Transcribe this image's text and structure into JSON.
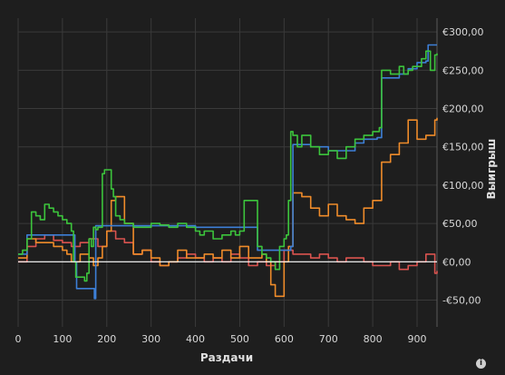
{
  "chart_data": {
    "type": "line",
    "xlabel": "Раздачи",
    "ylabel": "Выигрыш",
    "x_ticks": [
      0,
      100,
      200,
      300,
      400,
      500,
      600,
      700,
      800,
      900
    ],
    "y_ticks": [
      -50,
      0,
      50,
      100,
      150,
      200,
      250,
      300
    ],
    "y_tick_labels": [
      "-€50,00",
      "€0,00",
      "€50,00",
      "€100,00",
      "€150,00",
      "€200,00",
      "€250,00",
      "€300,00"
    ],
    "xlim": [
      0,
      945
    ],
    "ylim": [
      -85,
      318
    ],
    "grid": true,
    "y_axis_position": "right",
    "colors": {
      "background": "#1e1e1e",
      "grid": "#3a3a3a",
      "zero_line": "#ffffff",
      "text": "#d8d8d8"
    },
    "series": [
      {
        "color": "#3d7fd6",
        "x": [
          0,
          18,
          20,
          60,
          120,
          128,
          132,
          168,
          172,
          175,
          185,
          220,
          280,
          300,
          340,
          380,
          400,
          460,
          480,
          540,
          560,
          600,
          615,
          620,
          660,
          700,
          760,
          780,
          800,
          810,
          820,
          840,
          860,
          880,
          900,
          920,
          925,
          945
        ],
        "y": [
          10,
          10,
          35,
          35,
          35,
          0,
          -35,
          -35,
          -48,
          47,
          47,
          47,
          47,
          47,
          47,
          47,
          45,
          45,
          45,
          15,
          15,
          15,
          20,
          153,
          150,
          145,
          155,
          160,
          160,
          162,
          240,
          240,
          245,
          252,
          260,
          262,
          283,
          283
        ]
      },
      {
        "color": "#3cc43c",
        "x": [
          0,
          10,
          20,
          30,
          40,
          50,
          60,
          70,
          80,
          90,
          100,
          110,
          120,
          125,
          130,
          140,
          150,
          155,
          160,
          165,
          170,
          175,
          180,
          190,
          195,
          200,
          210,
          215,
          220,
          230,
          240,
          260,
          280,
          300,
          320,
          340,
          360,
          380,
          400,
          410,
          420,
          440,
          460,
          480,
          490,
          500,
          510,
          520,
          530,
          540,
          545,
          550,
          560,
          570,
          580,
          590,
          600,
          605,
          610,
          615,
          620,
          630,
          640,
          660,
          680,
          700,
          720,
          740,
          760,
          780,
          800,
          810,
          815,
          820,
          840,
          860,
          870,
          880,
          890,
          900,
          910,
          920,
          930,
          940,
          945
        ],
        "y": [
          10,
          15,
          30,
          65,
          60,
          55,
          75,
          70,
          65,
          60,
          55,
          50,
          40,
          0,
          -20,
          -20,
          -25,
          -15,
          30,
          20,
          45,
          42,
          45,
          115,
          120,
          120,
          95,
          85,
          60,
          55,
          50,
          45,
          45,
          50,
          48,
          45,
          50,
          45,
          40,
          35,
          40,
          30,
          35,
          40,
          35,
          40,
          80,
          80,
          80,
          20,
          20,
          10,
          5,
          0,
          -10,
          20,
          30,
          35,
          80,
          170,
          165,
          150,
          165,
          150,
          140,
          145,
          135,
          150,
          160,
          165,
          170,
          170,
          175,
          250,
          245,
          255,
          245,
          250,
          255,
          255,
          265,
          275,
          250,
          270,
          272
        ]
      },
      {
        "color": "#ee8b2a",
        "x": [
          0,
          20,
          40,
          60,
          80,
          100,
          110,
          120,
          140,
          160,
          170,
          180,
          190,
          200,
          210,
          220,
          240,
          260,
          280,
          300,
          320,
          340,
          360,
          380,
          400,
          420,
          440,
          460,
          480,
          500,
          520,
          540,
          550,
          560,
          570,
          580,
          600,
          610,
          620,
          640,
          660,
          680,
          700,
          720,
          740,
          760,
          780,
          800,
          820,
          840,
          860,
          880,
          900,
          920,
          940,
          945
        ],
        "y": [
          5,
          30,
          25,
          25,
          20,
          15,
          10,
          0,
          10,
          5,
          -5,
          5,
          20,
          40,
          80,
          85,
          50,
          10,
          15,
          5,
          -5,
          0,
          15,
          5,
          5,
          10,
          5,
          15,
          5,
          20,
          5,
          5,
          10,
          0,
          -30,
          -45,
          0,
          20,
          90,
          85,
          70,
          60,
          75,
          60,
          55,
          50,
          70,
          80,
          130,
          140,
          155,
          185,
          160,
          165,
          185,
          188
        ]
      },
      {
        "color": "#d9534f",
        "x": [
          0,
          20,
          40,
          60,
          80,
          100,
          120,
          140,
          160,
          180,
          200,
          220,
          240,
          260,
          280,
          300,
          320,
          340,
          360,
          380,
          400,
          420,
          440,
          460,
          480,
          500,
          520,
          540,
          560,
          580,
          600,
          620,
          640,
          660,
          680,
          700,
          720,
          740,
          760,
          780,
          800,
          820,
          840,
          860,
          880,
          900,
          920,
          940,
          945
        ],
        "y": [
          0,
          20,
          30,
          35,
          28,
          25,
          20,
          25,
          30,
          20,
          40,
          30,
          25,
          10,
          15,
          0,
          -5,
          0,
          5,
          10,
          5,
          0,
          5,
          0,
          10,
          5,
          -5,
          0,
          -5,
          0,
          15,
          10,
          10,
          5,
          10,
          5,
          0,
          5,
          5,
          0,
          -5,
          -5,
          0,
          -10,
          -5,
          0,
          10,
          -15,
          -12
        ]
      }
    ]
  }
}
